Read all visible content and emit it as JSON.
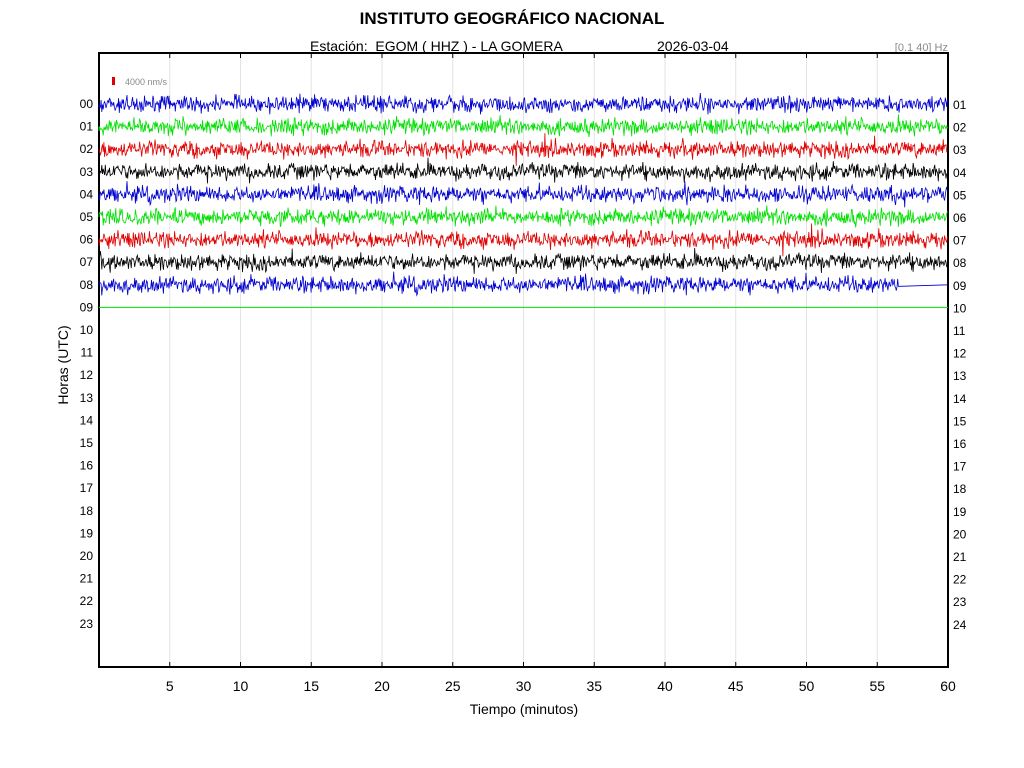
{
  "header": {
    "institution": "INSTITUTO GEOGRÁFICO NACIONAL",
    "station_line": "Estación:  EGOM ( HHZ ) - LA GOMERA",
    "date": "2026-03-04",
    "filter": "[0.1 40] Hz"
  },
  "chart_data": {
    "type": "line",
    "title": "INSTITUTO GEOGRÁFICO NACIONAL",
    "xlabel": "Tiempo (minutos)",
    "ylabel": "Horas (UTC)",
    "xlim": [
      0,
      60
    ],
    "x_ticks": [
      5,
      10,
      15,
      20,
      25,
      30,
      35,
      40,
      45,
      50,
      55,
      60
    ],
    "left_hour_labels": [
      "00",
      "01",
      "02",
      "03",
      "04",
      "05",
      "06",
      "07",
      "08",
      "09",
      "10",
      "11",
      "12",
      "13",
      "14",
      "15",
      "16",
      "17",
      "18",
      "19",
      "20",
      "21",
      "22",
      "23"
    ],
    "right_hour_labels": [
      "01",
      "02",
      "03",
      "04",
      "05",
      "06",
      "07",
      "08",
      "09",
      "10",
      "11",
      "12",
      "13",
      "14",
      "15",
      "16",
      "17",
      "18",
      "19",
      "20",
      "21",
      "22",
      "23",
      "24"
    ],
    "grid": true,
    "scale_bar": {
      "label": "4000 nm/s",
      "color": "#e00000"
    },
    "series": [
      {
        "hour": 0,
        "color": "#0000d0",
        "end_minute": 60,
        "amplitude": 1.0
      },
      {
        "hour": 1,
        "color": "#00e000",
        "end_minute": 60,
        "amplitude": 1.0
      },
      {
        "hour": 2,
        "color": "#e00000",
        "end_minute": 60,
        "amplitude": 1.0
      },
      {
        "hour": 3,
        "color": "#000000",
        "end_minute": 60,
        "amplitude": 1.0
      },
      {
        "hour": 4,
        "color": "#0000d0",
        "end_minute": 60,
        "amplitude": 1.0
      },
      {
        "hour": 5,
        "color": "#00e000",
        "end_minute": 60,
        "amplitude": 1.0
      },
      {
        "hour": 6,
        "color": "#e00000",
        "end_minute": 60,
        "amplitude": 1.0
      },
      {
        "hour": 7,
        "color": "#000000",
        "end_minute": 60,
        "amplitude": 1.0
      },
      {
        "hour": 8,
        "color": "#0000d0",
        "end_minute": 56.6,
        "amplitude": 1.0
      },
      {
        "hour": 9,
        "color": "#00e000",
        "end_minute": 60,
        "amplitude": 0.0
      }
    ]
  }
}
